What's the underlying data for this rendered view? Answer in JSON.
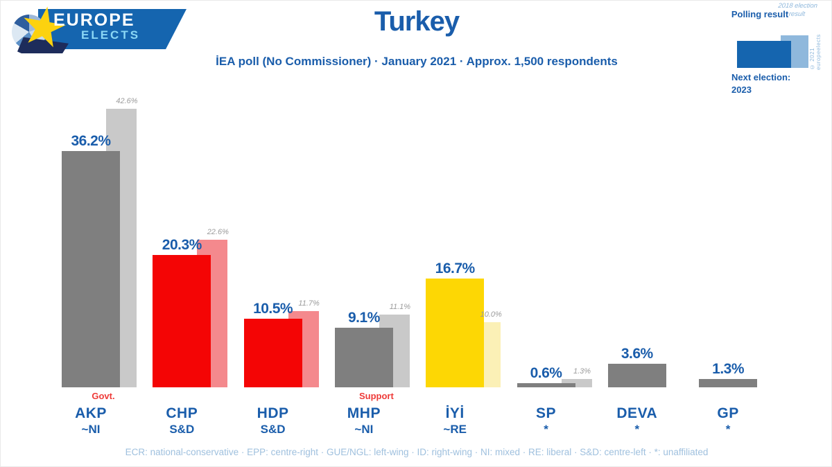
{
  "logo": {
    "line1": "EUROPE",
    "line2": "ELECTS"
  },
  "header": {
    "title": "Turkey",
    "subtitle": "İEA poll (No Commissioner) · January 2021 · Approx. 1,500 respondents"
  },
  "legend": {
    "polling_label": "Polling result",
    "election_label": "2018 election result",
    "next_election_line1": "Next election:",
    "next_election_line2": "2023",
    "copyright": "© 2021 europeelects",
    "polling_color": "#1565af",
    "election_color": "#8fb8dc"
  },
  "chart_data": {
    "type": "bar",
    "title": "Turkey",
    "unit": "%",
    "ylim": [
      0,
      45
    ],
    "grid": false,
    "legend_position": "top-right",
    "series": [
      {
        "name": "Polling result"
      },
      {
        "name": "2018 election result"
      }
    ],
    "parties": [
      {
        "name": "AKP",
        "group": "~NI",
        "tag": "Govt.",
        "poll": 36.2,
        "election": 42.6,
        "value_label": "36.2%",
        "election_value_label": "42.6%",
        "color": "#7f7f7f",
        "election_color": "#c9c9c9"
      },
      {
        "name": "CHP",
        "group": "S&D",
        "tag": null,
        "poll": 20.3,
        "election": 22.6,
        "value_label": "20.3%",
        "election_value_label": "22.6%",
        "color": "#f40505",
        "election_color": "#f4898d"
      },
      {
        "name": "HDP",
        "group": "S&D",
        "tag": null,
        "poll": 10.5,
        "election": 11.7,
        "value_label": "10.5%",
        "election_value_label": "11.7%",
        "color": "#f40505",
        "election_color": "#f4898d"
      },
      {
        "name": "MHP",
        "group": "~NI",
        "tag": "Support",
        "poll": 9.1,
        "election": 11.1,
        "value_label": "9.1%",
        "election_value_label": "11.1%",
        "color": "#7f7f7f",
        "election_color": "#c9c9c9"
      },
      {
        "name": "İYİ",
        "group": "~RE",
        "tag": null,
        "poll": 16.7,
        "election": 10.0,
        "value_label": "16.7%",
        "election_value_label": "10.0%",
        "color": "#fdd704",
        "election_color": "#fbf0b6"
      },
      {
        "name": "SP",
        "group": "*",
        "tag": null,
        "poll": 0.6,
        "election": 1.3,
        "value_label": "0.6%",
        "election_value_label": "1.3%",
        "color": "#7f7f7f",
        "election_color": "#c9c9c9"
      },
      {
        "name": "DEVA",
        "group": "*",
        "tag": null,
        "poll": 3.6,
        "election": null,
        "value_label": "3.6%",
        "election_value_label": null,
        "color": "#7f7f7f",
        "election_color": "#c9c9c9"
      },
      {
        "name": "GP",
        "group": "*",
        "tag": null,
        "poll": 1.3,
        "election": null,
        "value_label": "1.3%",
        "election_value_label": null,
        "color": "#7f7f7f",
        "election_color": "#c9c9c9"
      }
    ]
  },
  "footer": {
    "legend": "ECR: national-conservative · EPP: centre-right · GUE/NGL: left-wing · ID: right-wing · NI: mixed · RE: liberal · S&D: centre-left · *: unaffiliated"
  }
}
